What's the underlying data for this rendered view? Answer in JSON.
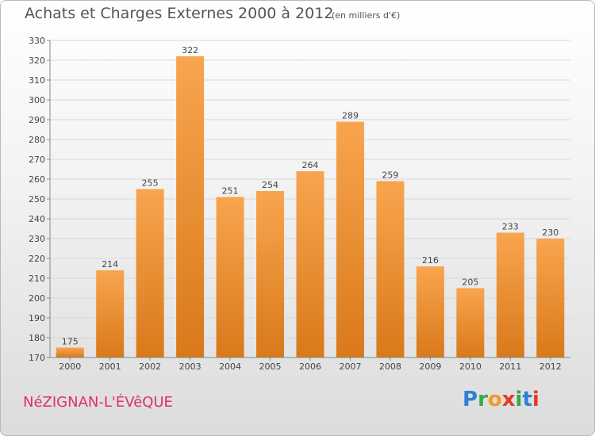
{
  "header": {
    "title": "Achats et Charges Externes 2000 à 2012",
    "subtitle": "(en milliers d'€)"
  },
  "footer": {
    "city": "NéZIGNAN-L'ÉVêQUE",
    "logo": {
      "letters": [
        "P",
        "r",
        "o",
        "x",
        "i",
        "t",
        "i"
      ]
    }
  },
  "colors": {
    "bar_light": "#f8a54f",
    "bar_dark": "#d9791a",
    "grid": "#d8d8d8",
    "text": "#444444",
    "city": "#e0305f"
  },
  "chart_data": {
    "type": "bar",
    "title": "Achats et Charges Externes 2000 à 2012",
    "subtitle": "(en milliers d'€)",
    "categories": [
      "2000",
      "2001",
      "2002",
      "2003",
      "2004",
      "2005",
      "2006",
      "2007",
      "2008",
      "2009",
      "2010",
      "2011",
      "2012"
    ],
    "values": [
      175,
      214,
      255,
      322,
      251,
      254,
      264,
      289,
      259,
      216,
      205,
      233,
      230
    ],
    "xlabel": "",
    "ylabel": "",
    "ylim": [
      170,
      330
    ],
    "yticks": [
      170,
      180,
      190,
      200,
      210,
      220,
      230,
      240,
      250,
      260,
      270,
      280,
      290,
      300,
      310,
      320,
      330
    ],
    "grid": true,
    "legend": "none"
  }
}
